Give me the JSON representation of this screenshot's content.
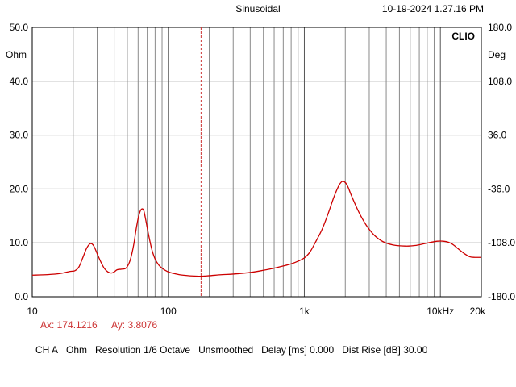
{
  "header": {
    "mode": "Sinusoidal",
    "timestamp": "10-19-2024  1.27.16 PM",
    "brand": "CLIO"
  },
  "cursor": {
    "ax_text": "Ax: 174.1216",
    "ay_text": "Ay: 3.8076",
    "x": 174.1216,
    "color": "#cc3333"
  },
  "status": {
    "channel": "CH A",
    "unit": "Ohm",
    "resolution": "Resolution 1/6 Octave",
    "smoothing": "Unsmoothed",
    "delay": "Delay [ms] 0.000",
    "dist_rise": "Dist Rise [dB] 30.00"
  },
  "chart_data": {
    "type": "line",
    "title": "",
    "xlabel": "",
    "ylabel": "Ohm",
    "y2label": "Deg",
    "x_scale": "log",
    "xlim": [
      10,
      20000
    ],
    "ylim": [
      0,
      50
    ],
    "y2lim": [
      -180,
      180
    ],
    "grid": true,
    "x_ticks": [
      {
        "value": 10,
        "label": "10"
      },
      {
        "value": 100,
        "label": "100"
      },
      {
        "value": 1000,
        "label": "1k"
      },
      {
        "value": 10000,
        "label": "10kHz"
      },
      {
        "value": 20000,
        "label": "20k"
      }
    ],
    "y_ticks": [
      {
        "value": 0,
        "label": "0.0"
      },
      {
        "value": 10,
        "label": "10.0"
      },
      {
        "value": 20,
        "label": "20.0"
      },
      {
        "value": 30,
        "label": "30.0"
      },
      {
        "value": 40,
        "label": "40.0"
      },
      {
        "value": 50,
        "label": "50.0"
      }
    ],
    "y2_ticks": [
      {
        "value": -180,
        "label": "-180.0"
      },
      {
        "value": -108,
        "label": "-108.0"
      },
      {
        "value": -36,
        "label": "-36.0"
      },
      {
        "value": 36,
        "label": "36.0"
      },
      {
        "value": 108,
        "label": "108.0"
      },
      {
        "value": 180,
        "label": "180.0"
      }
    ],
    "series": [
      {
        "color": "#cc0000",
        "x": [
          10,
          13,
          16,
          19,
          20.5,
          22,
          23.5,
          25,
          26.5,
          27.5,
          28.5,
          30,
          32,
          34,
          36,
          38,
          40,
          42,
          45,
          48,
          50,
          52,
          54,
          56,
          58,
          60,
          62,
          64,
          66,
          68,
          70,
          73,
          76,
          80,
          85,
          90,
          95,
          100,
          110,
          120,
          135,
          150,
          174,
          200,
          250,
          300,
          400,
          500,
          600,
          700,
          800,
          900,
          1000,
          1100,
          1200,
          1350,
          1500,
          1650,
          1800,
          1900,
          2000,
          2100,
          2200,
          2400,
          2600,
          2900,
          3300,
          3800,
          4500,
          5500,
          6500,
          7500,
          8500,
          9500,
          10500,
          11500,
          12500,
          13500,
          15000,
          16500,
          18000,
          20000
        ],
        "values": [
          4.0,
          4.1,
          4.3,
          4.7,
          4.8,
          5.5,
          7.2,
          8.9,
          9.8,
          9.8,
          9.3,
          8.0,
          6.4,
          5.2,
          4.6,
          4.4,
          4.6,
          5.0,
          5.1,
          5.2,
          5.6,
          6.5,
          8.0,
          10.0,
          12.5,
          14.5,
          15.8,
          16.3,
          16.0,
          14.5,
          12.8,
          10.5,
          8.6,
          7.0,
          5.9,
          5.3,
          4.9,
          4.6,
          4.3,
          4.1,
          3.95,
          3.85,
          3.8,
          3.9,
          4.1,
          4.2,
          4.5,
          4.9,
          5.3,
          5.7,
          6.1,
          6.6,
          7.2,
          8.3,
          10.0,
          12.5,
          15.5,
          18.5,
          20.7,
          21.4,
          21.2,
          20.3,
          19.0,
          16.8,
          15.0,
          13.0,
          11.3,
          10.2,
          9.6,
          9.4,
          9.5,
          9.8,
          10.1,
          10.3,
          10.3,
          10.1,
          9.6,
          8.9,
          8.0,
          7.4,
          7.3,
          7.3
        ]
      }
    ]
  }
}
